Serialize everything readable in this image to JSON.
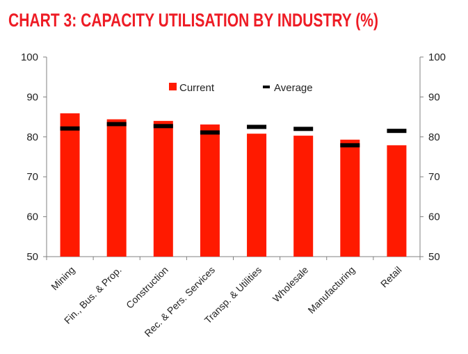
{
  "chart_data": {
    "type": "bar",
    "title": "CHART 3: CAPACITY UTILISATION BY INDUSTRY (%)",
    "categories": [
      "Mining",
      "Fin., Bus. & Prop.",
      "Construction",
      "Rec. & Pers. Services",
      "Transp. & Utilities",
      "Wholesale",
      "Manufacturing",
      "Retail"
    ],
    "series": [
      {
        "name": "Current",
        "type": "bar",
        "color": "#ff1a00",
        "values": [
          85.9,
          84.4,
          84.0,
          83.1,
          80.8,
          80.3,
          79.3,
          77.9
        ]
      },
      {
        "name": "Average",
        "type": "marker",
        "color": "#000000",
        "values": [
          82.1,
          83.2,
          82.7,
          81.1,
          82.5,
          82.0,
          77.9,
          81.5
        ]
      }
    ],
    "ylim": [
      50,
      100
    ],
    "yticks": [
      50,
      60,
      70,
      80,
      90,
      100
    ],
    "ytick_labels": [
      "50",
      "60",
      "70",
      "80",
      "90",
      "100"
    ],
    "legend": [
      "Current",
      "Average"
    ],
    "legend_position": "top-center",
    "xlabel": "",
    "ylabel": "",
    "grid": false
  }
}
